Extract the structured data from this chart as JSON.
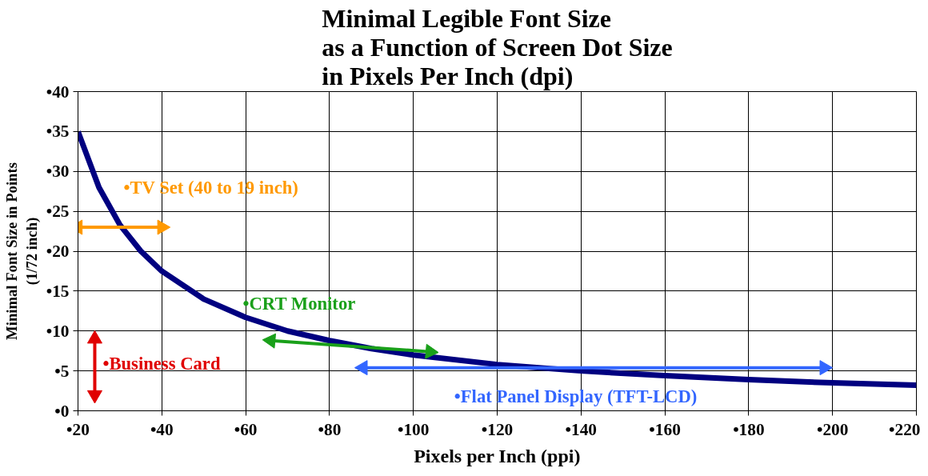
{
  "chart_data": {
    "type": "line",
    "title": "Minimal Legible Font Size\nas a Function of Screen Dot Size\nin Pixels Per Inch (dpi)",
    "xlabel": "Pixels per Inch (ppi)",
    "ylabel": "Minimal Font Size in Points\n(1/72 inch)",
    "xlim": [
      20,
      220
    ],
    "ylim": [
      0,
      40
    ],
    "xticks": [
      {
        "value": 20,
        "label": "•20"
      },
      {
        "value": 40,
        "label": "•40"
      },
      {
        "value": 60,
        "label": "•60"
      },
      {
        "value": 80,
        "label": "•80"
      },
      {
        "value": 100,
        "label": "•100"
      },
      {
        "value": 120,
        "label": "•120"
      },
      {
        "value": 140,
        "label": "•140"
      },
      {
        "value": 160,
        "label": "•160"
      },
      {
        "value": 180,
        "label": "•180"
      },
      {
        "value": 200,
        "label": "•200"
      },
      {
        "value": 220,
        "label": "•220"
      }
    ],
    "yticks": [
      {
        "value": 0,
        "label": "•0"
      },
      {
        "value": 5,
        "label": "•5"
      },
      {
        "value": 10,
        "label": "•10"
      },
      {
        "value": 15,
        "label": "•15"
      },
      {
        "value": 20,
        "label": "•20"
      },
      {
        "value": 25,
        "label": "•25"
      },
      {
        "value": 30,
        "label": "•30"
      },
      {
        "value": 35,
        "label": "•35"
      },
      {
        "value": 40,
        "label": "•40"
      }
    ],
    "grid": true,
    "series": [
      {
        "color": "#000080",
        "x": [
          20,
          25,
          30,
          35,
          40,
          50,
          60,
          70,
          80,
          90,
          100,
          120,
          140,
          160,
          180,
          200,
          220
        ],
        "values": [
          35,
          28,
          23.3,
          20,
          17.5,
          14,
          11.7,
          10,
          8.8,
          7.8,
          7,
          5.8,
          5,
          4.4,
          3.9,
          3.5,
          3.2
        ]
      },
      {
        "name": "•TV Set (40 to 19 inch)",
        "marker": "triangle",
        "color": "#ff9900",
        "x": [
          20,
          40
        ],
        "values": [
          23,
          23
        ]
      },
      {
        "name": "•CRT Monitor",
        "marker": "triangle",
        "color": "#1aa01a",
        "x": [
          66,
          104
        ],
        "values": [
          8.8,
          7.4
        ]
      },
      {
        "name": "•Business Card",
        "marker": "triangle",
        "color": "#e00000",
        "x": [
          24,
          24
        ],
        "values": [
          9,
          2
        ]
      },
      {
        "name": "•Flat Panel Display (TFT-LCD)",
        "marker": "triangle",
        "color": "#3366ff",
        "x": [
          88,
          198
        ],
        "values": [
          5.4,
          5.4
        ]
      }
    ]
  }
}
